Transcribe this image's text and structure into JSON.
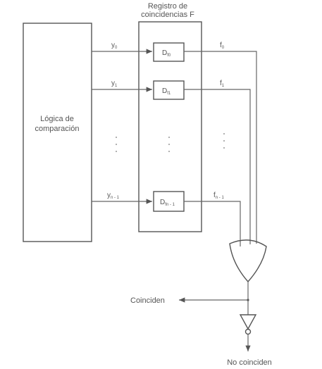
{
  "diagram": {
    "register_title_line1": "Registro de",
    "register_title_line2": "coincidencias F",
    "logic_label_line1": "Lógica de",
    "logic_label_line2": "comparación",
    "inputs": [
      {
        "label": "y",
        "sub": "0"
      },
      {
        "label": "y",
        "sub": "1"
      },
      {
        "label": "y",
        "sub": "n - 1"
      }
    ],
    "flipflops": [
      {
        "label": "D",
        "sub": "f0"
      },
      {
        "label": "D",
        "sub": "f1"
      },
      {
        "label": "D",
        "sub": "fn - 1"
      }
    ],
    "outputs": [
      {
        "label": "f",
        "sub": "0"
      },
      {
        "label": "f",
        "sub": "1"
      },
      {
        "label": "f",
        "sub": "n - 1"
      }
    ],
    "coinciden_label": "Coinciden",
    "no_coinciden_label": "No coinciden"
  },
  "colors": {
    "line": "#666666",
    "text": "#555555",
    "background": "#ffffff"
  }
}
